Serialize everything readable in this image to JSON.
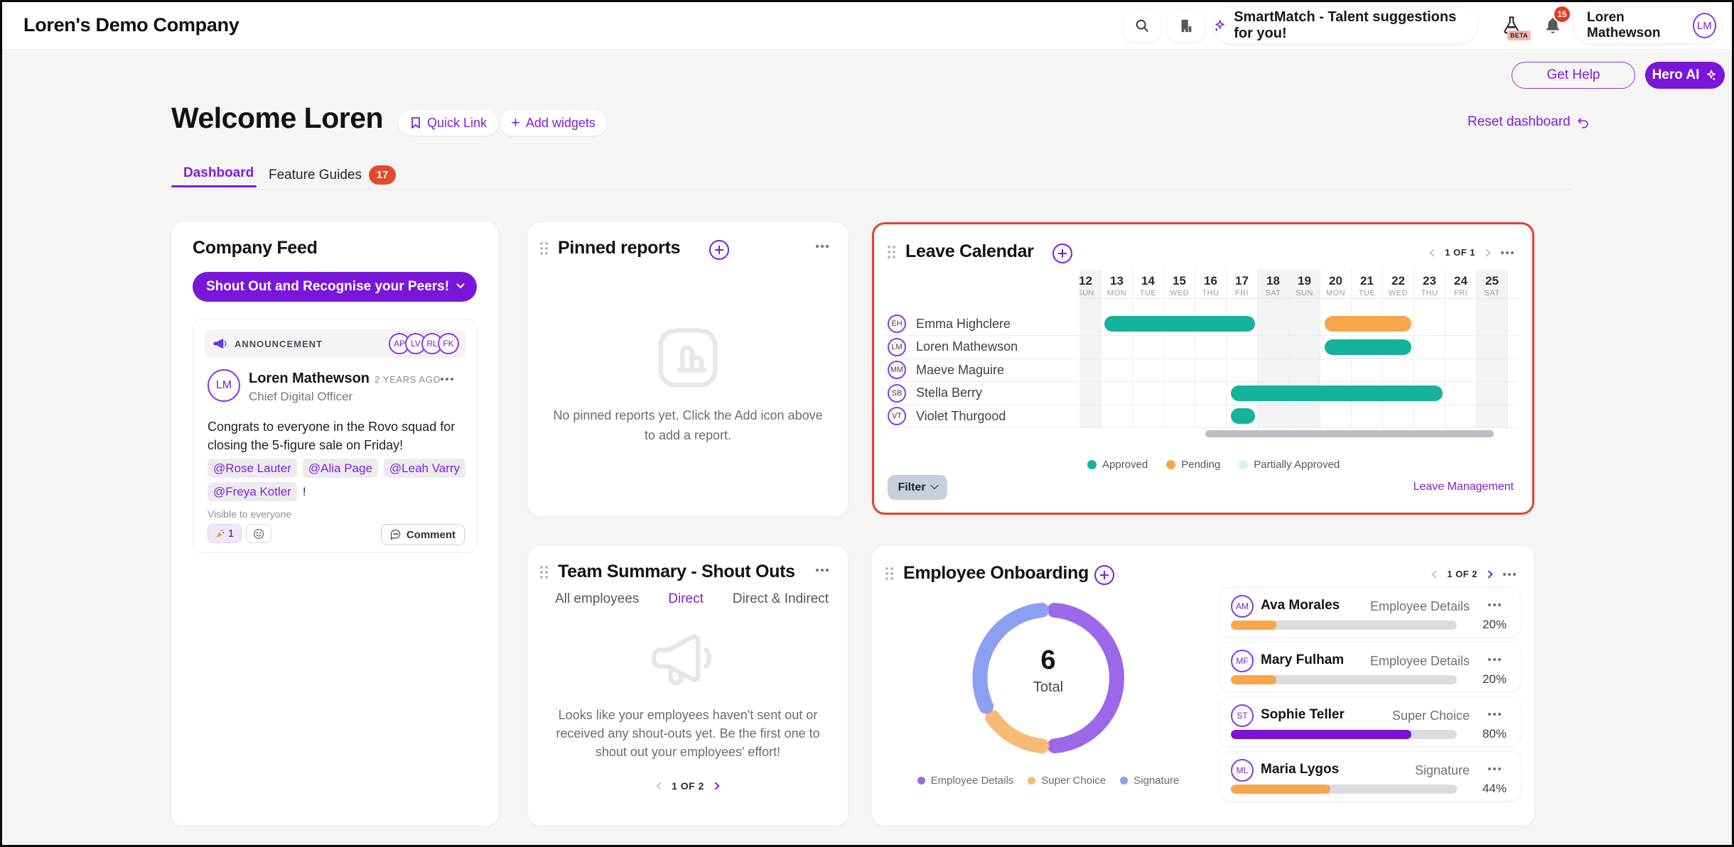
{
  "colors": {
    "accent": "#7a16d9",
    "teal": "#14b39a",
    "orange": "#f7a64b",
    "mint": "#d9f2ec",
    "highlight_red": "#e8402a",
    "badge_red": "#e04b2e",
    "progress_purple": "#7a12d8"
  },
  "header": {
    "company": "Loren's Demo Company",
    "smartmatch": "SmartMatch - Talent suggestions for you!",
    "beta": "BETA",
    "notification_count": "15",
    "user_name": "Loren Mathewson",
    "user_initials": "LM"
  },
  "quick_actions": {
    "get_help": "Get Help",
    "hero_ai": "Hero AI"
  },
  "welcome": {
    "title": "Welcome Loren",
    "quick_link": "Quick Link",
    "add_widgets": "Add widgets",
    "reset": "Reset dashboard"
  },
  "tabs": {
    "dashboard": "Dashboard",
    "feature_guides": "Feature Guides",
    "badge": "17"
  },
  "feed": {
    "title": "Company Feed",
    "shout_button": "Shout Out and Recognise your Peers!",
    "announcement_label": "ANNOUNCEMENT",
    "announcement_avatars": [
      "AP",
      "LV",
      "RL",
      "FK"
    ],
    "post": {
      "initials": "LM",
      "author": "Loren Mathewson",
      "role": "Chief Digital Officer",
      "time": "2 YEARS AGO",
      "line1": "Congrats to everyone in the Rovo squad for",
      "line2": "closing the 5-figure sale on Friday!",
      "mentions_row1": [
        "@Rose Lauter",
        "@Alia Page",
        "@Leah Varry"
      ],
      "mentions_row2": [
        "@Freya Kotler"
      ],
      "suffix": "!",
      "visibility": "Visible to everyone",
      "reaction_count": "1",
      "comment": "Comment"
    }
  },
  "pinned": {
    "title": "Pinned reports",
    "empty1": "No pinned reports yet. Click the Add icon above",
    "empty2": "to add a report."
  },
  "leave": {
    "title": "Leave Calendar",
    "pager": "1 OF 1",
    "days": [
      {
        "num": "12",
        "dow": "SUN",
        "weekend": true
      },
      {
        "num": "13",
        "dow": "MON",
        "weekend": false
      },
      {
        "num": "14",
        "dow": "TUE",
        "weekend": false
      },
      {
        "num": "15",
        "dow": "WED",
        "weekend": false
      },
      {
        "num": "16",
        "dow": "THU",
        "weekend": false
      },
      {
        "num": "17",
        "dow": "FRI",
        "weekend": false
      },
      {
        "num": "18",
        "dow": "SAT",
        "weekend": true
      },
      {
        "num": "19",
        "dow": "SUN",
        "weekend": true
      },
      {
        "num": "20",
        "dow": "MON",
        "weekend": false
      },
      {
        "num": "21",
        "dow": "TUE",
        "weekend": false
      },
      {
        "num": "22",
        "dow": "WED",
        "weekend": false
      },
      {
        "num": "23",
        "dow": "THU",
        "weekend": false
      },
      {
        "num": "24",
        "dow": "FRI",
        "weekend": false
      },
      {
        "num": "25",
        "dow": "SAT",
        "weekend": true
      }
    ],
    "people": [
      {
        "initials": "EH",
        "name": "Emma Highclere"
      },
      {
        "initials": "LM",
        "name": "Loren Mathewson"
      },
      {
        "initials": "MM",
        "name": "Maeve Maguire"
      },
      {
        "initials": "SB",
        "name": "Stella Berry"
      },
      {
        "initials": "VT",
        "name": "Violet Thurgood"
      }
    ],
    "bars": [
      {
        "row": 0,
        "from": 13.05,
        "to": 17.95,
        "status": "approved"
      },
      {
        "row": 0,
        "from": 20.1,
        "to": 22.95,
        "status": "pending"
      },
      {
        "row": 1,
        "from": 20.1,
        "to": 22.95,
        "status": "approved"
      },
      {
        "row": 3,
        "from": 17.1,
        "to": 23.95,
        "status": "approved"
      },
      {
        "row": 4,
        "from": 17.1,
        "to": 17.95,
        "status": "approved"
      }
    ],
    "legend": [
      {
        "label": "Approved",
        "color": "#14b39a"
      },
      {
        "label": "Pending",
        "color": "#f7a64b"
      },
      {
        "label": "Partially Approved",
        "color": "#d9f2ec"
      }
    ],
    "filter": "Filter",
    "link": "Leave Management"
  },
  "team": {
    "title": "Team Summary - Shout Outs",
    "tabs": [
      "All employees",
      "Direct",
      "Direct & Indirect"
    ],
    "active_tab": "Direct",
    "empty1": "Looks like your employees haven't sent out or",
    "empty2": "received any shout-outs yet. Be the first one to",
    "empty3": "shout out your employees' effort!",
    "pager": "1 OF 2"
  },
  "onboarding": {
    "title": "Employee Onboarding",
    "pager": "1 OF 2",
    "chart_data": {
      "type": "pie",
      "total": "6",
      "total_label": "Total",
      "segments": [
        {
          "label": "Employee Details",
          "value": 3,
          "color": "#9b68ea"
        },
        {
          "label": "Super Choice",
          "value": 1,
          "color": "#f8bb76"
        },
        {
          "label": "Signature",
          "value": 2,
          "color": "#8d9ff0"
        }
      ]
    },
    "people": [
      {
        "initials": "AM",
        "name": "Ava Morales",
        "stage": "Employee Details",
        "pct": 20,
        "color": "#f7a64b"
      },
      {
        "initials": "MF",
        "name": "Mary Fulham",
        "stage": "Employee Details",
        "pct": 20,
        "color": "#f7a64b"
      },
      {
        "initials": "ST",
        "name": "Sophie Teller",
        "stage": "Super Choice",
        "pct": 80,
        "color": "#7a12d8"
      },
      {
        "initials": "ML",
        "name": "Maria Lygos",
        "stage": "Signature",
        "pct": 44,
        "color": "#f7a64b"
      }
    ]
  }
}
